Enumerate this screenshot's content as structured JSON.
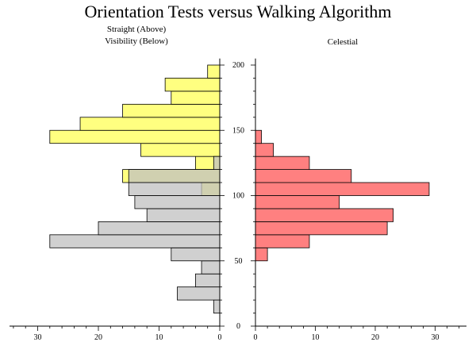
{
  "chart_data": {
    "type": "bar",
    "title": "Orientation Tests versus Walking Algorithm",
    "y_axis": {
      "range": [
        0,
        205
      ],
      "ticks": [
        0,
        50,
        100,
        150,
        200
      ],
      "bin_width": 10
    },
    "left_panel": {
      "labels": [
        "Straight (Above)",
        "Visibility (Below)"
      ],
      "x_range": [
        0,
        35
      ],
      "x_ticks": [
        30,
        20,
        10,
        0
      ],
      "series": [
        {
          "name": "Straight (Above)",
          "color": "#ffff80",
          "bins": [
            {
              "y0": 100,
              "y1": 110,
              "value": 3
            },
            {
              "y0": 110,
              "y1": 120,
              "value": 16
            },
            {
              "y0": 120,
              "y1": 130,
              "value": 4
            },
            {
              "y0": 130,
              "y1": 140,
              "value": 13
            },
            {
              "y0": 140,
              "y1": 150,
              "value": 28
            },
            {
              "y0": 150,
              "y1": 160,
              "value": 23
            },
            {
              "y0": 160,
              "y1": 170,
              "value": 16
            },
            {
              "y0": 170,
              "y1": 180,
              "value": 8
            },
            {
              "y0": 180,
              "y1": 190,
              "value": 9
            },
            {
              "y0": 190,
              "y1": 200,
              "value": 2
            }
          ]
        },
        {
          "name": "Visibility (Below)",
          "color": "#c0c0c0",
          "bins": [
            {
              "y0": 10,
              "y1": 20,
              "value": 1
            },
            {
              "y0": 20,
              "y1": 30,
              "value": 7
            },
            {
              "y0": 30,
              "y1": 40,
              "value": 4
            },
            {
              "y0": 40,
              "y1": 50,
              "value": 3
            },
            {
              "y0": 50,
              "y1": 60,
              "value": 8
            },
            {
              "y0": 60,
              "y1": 70,
              "value": 28
            },
            {
              "y0": 70,
              "y1": 80,
              "value": 20
            },
            {
              "y0": 80,
              "y1": 90,
              "value": 12
            },
            {
              "y0": 90,
              "y1": 100,
              "value": 14
            },
            {
              "y0": 100,
              "y1": 110,
              "value": 15
            },
            {
              "y0": 110,
              "y1": 120,
              "value": 15
            },
            {
              "y0": 120,
              "y1": 130,
              "value": 1
            }
          ]
        }
      ],
      "overlap_color": "#c0c080"
    },
    "right_panel": {
      "label": "Celestial",
      "x_range": [
        0,
        35
      ],
      "x_ticks": [
        0,
        10,
        20,
        30
      ],
      "series": [
        {
          "name": "Celestial",
          "color": "#ff8080",
          "bins": [
            {
              "y0": 50,
              "y1": 60,
              "value": 2
            },
            {
              "y0": 60,
              "y1": 70,
              "value": 9
            },
            {
              "y0": 70,
              "y1": 80,
              "value": 22
            },
            {
              "y0": 80,
              "y1": 90,
              "value": 23
            },
            {
              "y0": 90,
              "y1": 100,
              "value": 14
            },
            {
              "y0": 100,
              "y1": 110,
              "value": 29
            },
            {
              "y0": 110,
              "y1": 120,
              "value": 16
            },
            {
              "y0": 120,
              "y1": 130,
              "value": 9
            },
            {
              "y0": 130,
              "y1": 140,
              "value": 3
            },
            {
              "y0": 140,
              "y1": 150,
              "value": 1
            }
          ]
        }
      ]
    }
  }
}
